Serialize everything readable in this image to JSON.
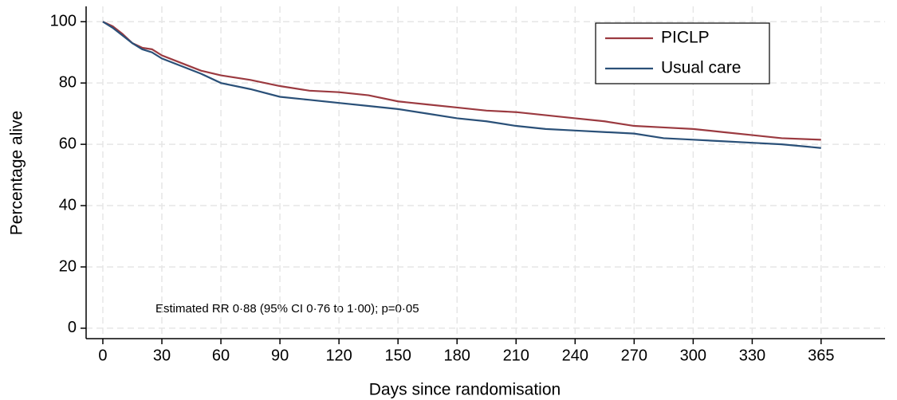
{
  "chart_data": {
    "type": "line",
    "x_label": "Days since randomisation",
    "y_label": "Percentage alive",
    "annotation": "Estimated RR 0·88 (95% CI 0·76 to 1·00); p=0·05",
    "x": [
      0,
      5,
      10,
      15,
      20,
      25,
      30,
      40,
      50,
      60,
      75,
      90,
      105,
      120,
      135,
      150,
      165,
      180,
      195,
      210,
      225,
      240,
      255,
      270,
      285,
      300,
      315,
      330,
      345,
      365
    ],
    "series": [
      {
        "name": "PICLP",
        "color": "#9b3a40",
        "values": [
          100,
          98.5,
          96,
          93,
          91.5,
          91,
          89,
          86.5,
          84,
          82.5,
          81,
          79,
          77.5,
          77,
          76,
          74,
          73,
          72,
          71,
          70.5,
          69.5,
          68.5,
          67.5,
          66,
          65.5,
          65,
          64,
          63,
          62,
          61.5
        ]
      },
      {
        "name": "Usual care",
        "color": "#2a5078",
        "values": [
          100,
          98,
          95.5,
          93,
          91,
          90,
          88,
          85.5,
          83,
          80,
          78,
          75.5,
          74.5,
          73.5,
          72.5,
          71.5,
          70,
          68.5,
          67.5,
          66,
          65,
          64.5,
          64,
          63.5,
          62,
          61.5,
          61,
          60.5,
          60,
          58.8
        ]
      }
    ],
    "xlim": [
      -8.5,
      397.5
    ],
    "ylim": [
      -3.4,
      105
    ],
    "xticks": [
      0,
      30,
      60,
      90,
      120,
      150,
      180,
      210,
      240,
      270,
      300,
      330,
      365
    ],
    "yticks": [
      0,
      20,
      40,
      60,
      80,
      100
    ],
    "grid": true,
    "legend": "top-right"
  }
}
